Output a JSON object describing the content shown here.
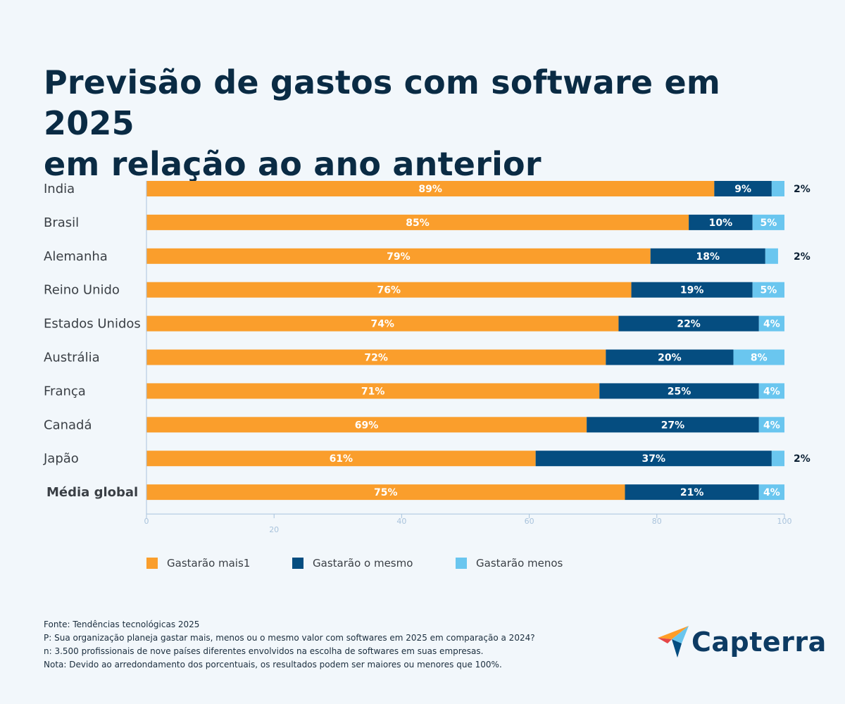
{
  "title_lines": [
    "Previsão de gastos com software em 2025",
    "em relação ao ano anterior"
  ],
  "colors": {
    "mais": "#fa9e2c",
    "mesmo": "#054d80",
    "menos": "#6ac6ef",
    "title": "#0a2b44"
  },
  "chart_data": {
    "type": "bar",
    "orientation": "horizontal",
    "stacked": true,
    "categories": [
      "India",
      "Brasil",
      "Alemanha",
      "Reino Unido",
      "Estados Unidos",
      "Austrália",
      "França",
      "Canadá",
      "Japão",
      "Média global"
    ],
    "series": [
      {
        "name": "Gastarão mais1",
        "values": [
          89,
          85,
          79,
          76,
          74,
          72,
          71,
          69,
          61,
          75
        ]
      },
      {
        "name": "Gastarão o mesmo",
        "values": [
          9,
          10,
          18,
          19,
          22,
          20,
          25,
          27,
          37,
          21
        ]
      },
      {
        "name": "Gastarão menos",
        "values": [
          2,
          5,
          2,
          5,
          4,
          8,
          4,
          4,
          2,
          4
        ]
      }
    ],
    "xlim": [
      0,
      100
    ],
    "xticks": [
      0,
      20,
      40,
      60,
      80,
      100
    ],
    "grid": false,
    "legend_position": "bottom"
  },
  "legend": [
    "Gastarão mais1",
    "Gastarão o mesmo",
    "Gastarão menos"
  ],
  "notes": [
    "Fonte: Tendências tecnológicas 2025",
    "P: Sua organização planeja gastar mais, menos ou o mesmo valor com softwares em 2025 em comparação a 2024?",
    "n: 3.500 profissionais de nove países diferentes envolvidos na escolha de softwares em suas empresas.",
    "Nota: Devido ao arredondamento dos porcentuais, os resultados podem ser maiores ou menores que 100%."
  ],
  "logo": {
    "text": "Capterra"
  }
}
